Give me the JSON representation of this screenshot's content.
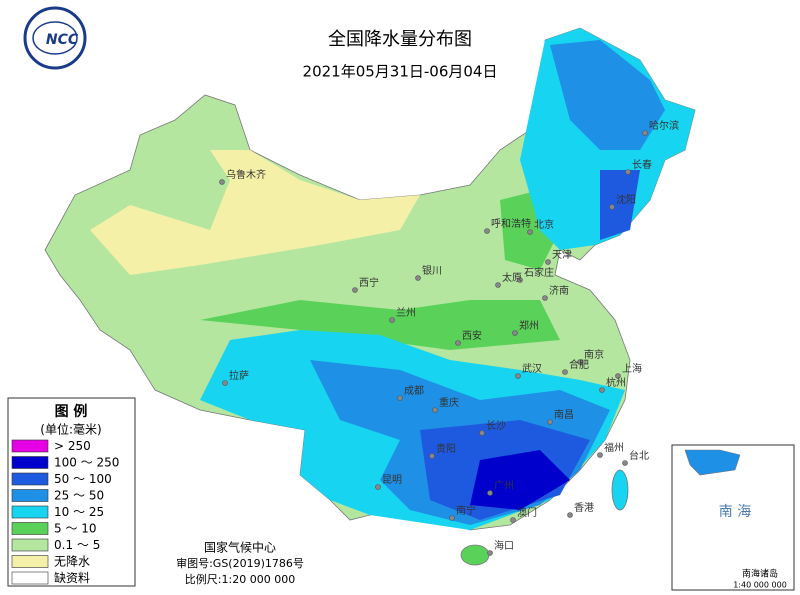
{
  "header": {
    "title": "全国降水量分布图",
    "date": "2021年05月31日-06月04日"
  },
  "logo": "NCC",
  "legend": {
    "title": "图 例",
    "unit": "(单位:毫米)",
    "items": [
      {
        "label": "> 250",
        "color": "#e600e6"
      },
      {
        "label": "100 ～ 250",
        "color": "#0000cc"
      },
      {
        "label": "50 ～ 100",
        "color": "#1e5ae0"
      },
      {
        "label": "25 ～ 50",
        "color": "#1e90e6"
      },
      {
        "label": "10 ～ 25",
        "color": "#17d4f0"
      },
      {
        "label": "5 ～ 10",
        "color": "#5ad25a"
      },
      {
        "label": "0.1 ～ 5",
        "color": "#b4e6a0"
      },
      {
        "label": "无降水",
        "color": "#f5f0a8"
      },
      {
        "label": "缺资料",
        "color": "#ffffff"
      }
    ]
  },
  "cities": [
    "乌鲁木齐",
    "哈尔滨",
    "长春",
    "沈阳",
    "北京",
    "天津",
    "呼和浩特",
    "石家庄",
    "太原",
    "济南",
    "银川",
    "西宁",
    "兰州",
    "郑州",
    "西安",
    "南京",
    "合肥",
    "上海",
    "杭州",
    "武汉",
    "成都",
    "重庆",
    "拉萨",
    "长沙",
    "南昌",
    "福州",
    "贵阳",
    "昆明",
    "广州",
    "南宁",
    "台北",
    "香港",
    "澳门",
    "海口"
  ],
  "footer": {
    "agency": "国家气候中心",
    "approval": "审图号:GS(2019)1786号",
    "scale": "比例尺:1:20 000 000"
  },
  "inset": {
    "sea": "南 海",
    "title": "南海诸岛",
    "scale": "1:40 000 000"
  }
}
